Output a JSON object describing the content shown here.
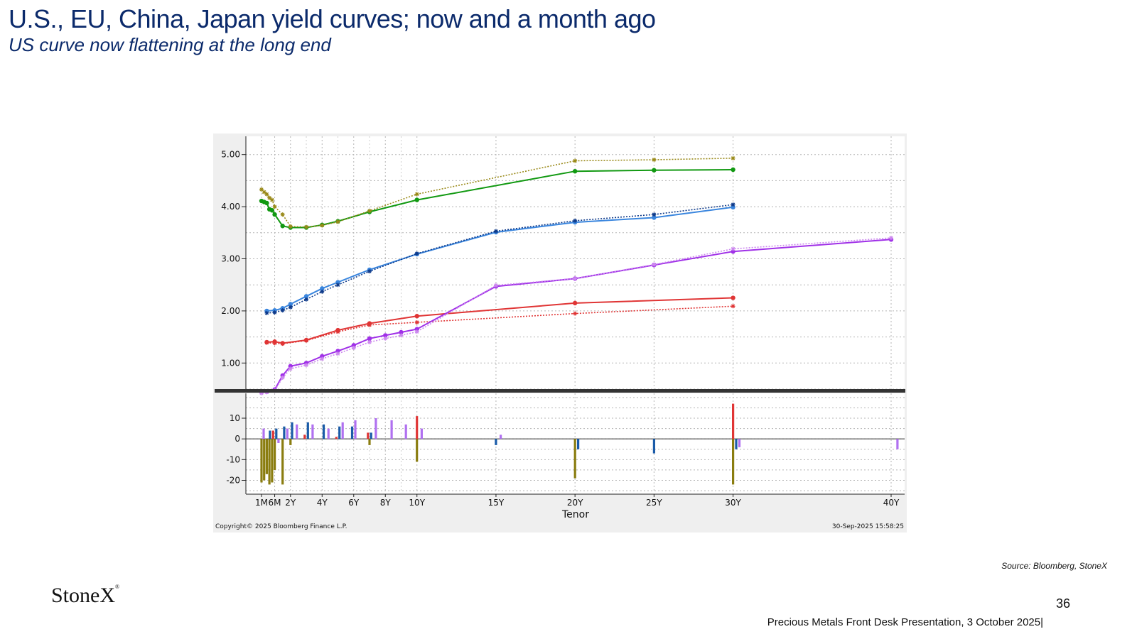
{
  "header": {
    "title": "U.S., EU, China, Japan yield curves; now and a month ago",
    "subtitle": "US curve now flattening at the long end"
  },
  "footer": {
    "source": "Source: Bloomberg, StoneX",
    "page_number": "36",
    "presentation": "Precious Metals Front Desk Presentation, 3 October 2025|",
    "logo_text": "StoneX"
  },
  "chart_data": [
    {
      "type": "line",
      "title": "",
      "xlabel": "Tenor",
      "ylabel": "",
      "x_ticks": [
        {
          "label": "1M",
          "t": 0.083
        },
        {
          "label": "6M",
          "t": 0.5
        },
        {
          "label": "2Y",
          "t": 1
        },
        {
          "label": "4Y",
          "t": 2
        },
        {
          "label": "6Y",
          "t": 3
        },
        {
          "label": "8Y",
          "t": 4
        },
        {
          "label": "10Y",
          "t": 5
        },
        {
          "label": "15Y",
          "t": 7.5
        },
        {
          "label": "20Y",
          "t": 10
        },
        {
          "label": "25Y",
          "t": 12.5
        },
        {
          "label": "30Y",
          "t": 15
        },
        {
          "label": "40Y",
          "t": 20
        }
      ],
      "ylim": [
        0.5,
        5.35
      ],
      "y_ticks": [
        "1.00",
        "2.00",
        "3.00",
        "4.00",
        "5.00"
      ],
      "y_tick_values": [
        1,
        2,
        3,
        4,
        5
      ],
      "grid": true,
      "series": [
        {
          "color": "#119911",
          "style": "solid",
          "marker": "dot",
          "points": [
            [
              0.083,
              4.11
            ],
            [
              0.167,
              4.09
            ],
            [
              0.25,
              4.07
            ],
            [
              0.333,
              3.95
            ],
            [
              0.417,
              3.93
            ],
            [
              0.5,
              3.85
            ],
            [
              0.75,
              3.63
            ],
            [
              1,
              3.6
            ],
            [
              1.5,
              3.6
            ],
            [
              2,
              3.65
            ],
            [
              2.5,
              3.72
            ],
            [
              3.5,
              3.9
            ],
            [
              5,
              4.13
            ],
            [
              10,
              4.68
            ],
            [
              12.5,
              4.7
            ],
            [
              15,
              4.71
            ]
          ]
        },
        {
          "color": "#9a8a1a",
          "style": "dotted",
          "marker": "star",
          "points": [
            [
              0.083,
              4.33
            ],
            [
              0.167,
              4.28
            ],
            [
              0.25,
              4.24
            ],
            [
              0.333,
              4.17
            ],
            [
              0.417,
              4.13
            ],
            [
              0.5,
              4.0
            ],
            [
              0.75,
              3.85
            ],
            [
              1,
              3.62
            ],
            [
              1.5,
              3.61
            ],
            [
              2,
              3.64
            ],
            [
              2.5,
              3.71
            ],
            [
              3.5,
              3.92
            ],
            [
              5,
              4.24
            ],
            [
              10,
              4.88
            ],
            [
              12.5,
              4.9
            ],
            [
              15,
              4.93
            ]
          ]
        },
        {
          "color": "#3a86de",
          "style": "solid",
          "marker": "dot",
          "points": [
            [
              0.25,
              2.0
            ],
            [
              0.5,
              2.01
            ],
            [
              0.75,
              2.05
            ],
            [
              1,
              2.13
            ],
            [
              1.5,
              2.28
            ],
            [
              2,
              2.43
            ],
            [
              2.5,
              2.55
            ],
            [
              3.5,
              2.79
            ],
            [
              5,
              3.09
            ],
            [
              7.5,
              3.51
            ],
            [
              10,
              3.7
            ],
            [
              12.5,
              3.79
            ],
            [
              15,
              3.99
            ]
          ]
        },
        {
          "color": "#0e3a8a",
          "style": "dotted",
          "marker": "star",
          "points": [
            [
              0.25,
              1.96
            ],
            [
              0.5,
              1.97
            ],
            [
              0.75,
              2.01
            ],
            [
              1,
              2.07
            ],
            [
              1.5,
              2.22
            ],
            [
              2,
              2.37
            ],
            [
              2.5,
              2.5
            ],
            [
              3.5,
              2.76
            ],
            [
              5,
              3.1
            ],
            [
              7.5,
              3.53
            ],
            [
              10,
              3.73
            ],
            [
              12.5,
              3.85
            ],
            [
              15,
              4.04
            ]
          ]
        },
        {
          "color": "#e03535",
          "style": "solid",
          "marker": "dot",
          "points": [
            [
              0.25,
              1.4
            ],
            [
              0.5,
              1.41
            ],
            [
              0.75,
              1.38
            ],
            [
              1.5,
              1.44
            ],
            [
              2.5,
              1.63
            ],
            [
              3.5,
              1.76
            ],
            [
              5,
              1.9
            ],
            [
              10,
              2.15
            ],
            [
              15,
              2.25
            ]
          ]
        },
        {
          "color": "#e03535",
          "style": "dotted",
          "marker": "star",
          "points": [
            [
              0.25,
              1.39
            ],
            [
              0.5,
              1.38
            ],
            [
              0.75,
              1.37
            ],
            [
              1.5,
              1.43
            ],
            [
              2.5,
              1.6
            ],
            [
              3.5,
              1.73
            ],
            [
              5,
              1.78
            ],
            [
              10,
              1.95
            ],
            [
              15,
              2.09
            ]
          ]
        },
        {
          "color": "#a030e8",
          "style": "solid",
          "marker": "dot",
          "points": [
            [
              0.083,
              0.44
            ],
            [
              0.25,
              0.45
            ],
            [
              0.5,
              0.49
            ],
            [
              0.75,
              0.76
            ],
            [
              1,
              0.94
            ],
            [
              1.5,
              1.0
            ],
            [
              2,
              1.13
            ],
            [
              2.5,
              1.23
            ],
            [
              3,
              1.34
            ],
            [
              3.5,
              1.47
            ],
            [
              4,
              1.53
            ],
            [
              4.5,
              1.59
            ],
            [
              5,
              1.65
            ],
            [
              7.5,
              2.47
            ],
            [
              10,
              2.62
            ],
            [
              12.5,
              2.88
            ],
            [
              15,
              3.14
            ],
            [
              20,
              3.37
            ]
          ]
        },
        {
          "color": "#cc88ee",
          "style": "dotted",
          "marker": "star",
          "points": [
            [
              0.083,
              0.42
            ],
            [
              0.25,
              0.44
            ],
            [
              0.5,
              0.47
            ],
            [
              0.75,
              0.72
            ],
            [
              1,
              0.89
            ],
            [
              1.5,
              0.96
            ],
            [
              2,
              1.08
            ],
            [
              2.5,
              1.18
            ],
            [
              3,
              1.29
            ],
            [
              3.5,
              1.4
            ],
            [
              4,
              1.47
            ],
            [
              4.5,
              1.53
            ],
            [
              5,
              1.6
            ],
            [
              7.5,
              2.49
            ],
            [
              10,
              2.62
            ],
            [
              12.5,
              2.89
            ],
            [
              15,
              3.19
            ],
            [
              20,
              3.4
            ]
          ]
        }
      ]
    },
    {
      "type": "bar",
      "title": "",
      "ylim": [
        -26,
        22
      ],
      "y_ticks": [
        "10",
        "0",
        "-10",
        "-20"
      ],
      "y_tick_values": [
        10,
        0,
        -10,
        -20
      ],
      "grid": true,
      "series": [
        {
          "color": "#8a7d10",
          "values": [
            [
              0.083,
              -21
            ],
            [
              0.167,
              -20
            ],
            [
              0.25,
              -17
            ],
            [
              0.333,
              -22
            ],
            [
              0.417,
              -21
            ],
            [
              0.5,
              -15
            ],
            [
              0.75,
              -22
            ],
            [
              1,
              -3
            ],
            [
              3.5,
              -3
            ],
            [
              5,
              -11
            ],
            [
              10,
              -19
            ],
            [
              15,
              -22
            ]
          ]
        },
        {
          "color": "#1a5ba8",
          "values": [
            [
              0.35,
              4
            ],
            [
              0.55,
              5
            ],
            [
              0.8,
              6
            ],
            [
              1.05,
              8
            ],
            [
              1.55,
              8
            ],
            [
              2.05,
              7
            ],
            [
              2.55,
              6
            ],
            [
              2.95,
              6
            ],
            [
              3.55,
              3
            ],
            [
              7.5,
              -3
            ],
            [
              10.1,
              -5
            ],
            [
              12.5,
              -7
            ],
            [
              15.1,
              -5
            ]
          ]
        },
        {
          "color": "#e03535",
          "values": [
            [
              0.45,
              4
            ],
            [
              1.45,
              2
            ],
            [
              2.45,
              1
            ],
            [
              3.45,
              3
            ],
            [
              5,
              11
            ],
            [
              15,
              17
            ]
          ]
        },
        {
          "color": "#b070f0",
          "values": [
            [
              0.15,
              5
            ],
            [
              0.62,
              -2
            ],
            [
              0.9,
              5
            ],
            [
              1.2,
              7
            ],
            [
              1.7,
              7
            ],
            [
              2.2,
              5
            ],
            [
              2.65,
              8
            ],
            [
              3.05,
              9
            ],
            [
              3.7,
              10
            ],
            [
              4.2,
              9
            ],
            [
              4.65,
              7
            ],
            [
              5.15,
              5
            ],
            [
              7.65,
              2
            ],
            [
              15.2,
              -4
            ],
            [
              20.2,
              -5
            ]
          ]
        }
      ]
    }
  ],
  "chart_footer": {
    "copyright": "Copyright© 2025 Bloomberg Finance L.P.",
    "timestamp": "30-Sep-2025 15:58:25"
  }
}
